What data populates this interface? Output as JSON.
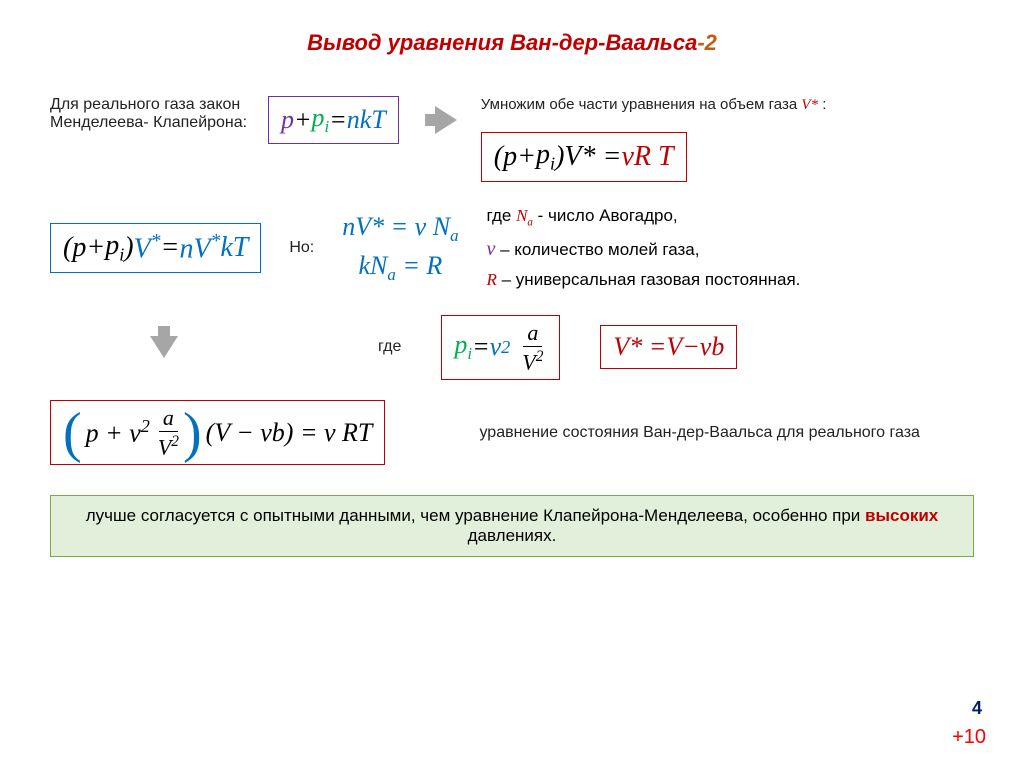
{
  "title": {
    "main": "Вывод уравнения Ван-дер-Ваальса",
    "suffix": "-2",
    "color_main": "#c00000",
    "color_suffix": "#c55a11",
    "fontsize": 22
  },
  "row1": {
    "label_left": "Для реального газа закон Менделеева- Клапейрона:",
    "eq1": {
      "border_color": "#7030a0",
      "terms": [
        {
          "t": "p",
          "c": "#7030a0"
        },
        {
          "t": " + ",
          "c": "#000000"
        },
        {
          "t": "p",
          "c": "#00b050",
          "sub": "i"
        },
        {
          "t": " = ",
          "c": "#000000"
        },
        {
          "t": "nkT",
          "c": "#0070c0"
        }
      ]
    },
    "label_right_prefix": "Умножим обе части уравнения на объем газа ",
    "label_right_sym": "V*",
    "label_right_suffix": " :",
    "eq2": {
      "border_color": "#c00000",
      "terms": [
        {
          "t": "(",
          "c": "#000"
        },
        {
          "t": "p",
          "c": "#000"
        },
        {
          "t": " + ",
          "c": "#000"
        },
        {
          "t": "p",
          "c": "#000",
          "sub": "i"
        },
        {
          "t": ")",
          "c": "#000"
        },
        {
          "t": "V",
          "c": "#000"
        },
        {
          "t": "* = ",
          "c": "#000"
        },
        {
          "t": "ν",
          "c": "#c00000"
        },
        {
          "t": " R T",
          "c": "#c00000"
        }
      ]
    }
  },
  "row2": {
    "eq3": {
      "border_color": "#0070c0",
      "terms": [
        {
          "t": "(",
          "c": "#000"
        },
        {
          "t": "p",
          "c": "#000"
        },
        {
          "t": " + ",
          "c": "#000"
        },
        {
          "t": "p",
          "c": "#000",
          "sub": "i"
        },
        {
          "t": ")",
          "c": "#000"
        },
        {
          "t": "V",
          "c": "#0070c0",
          "sup": "*"
        },
        {
          "t": " = ",
          "c": "#000"
        },
        {
          "t": "nV",
          "c": "#0070c0",
          "sup": "*"
        },
        {
          "t": "kT",
          "c": "#0070c0"
        }
      ]
    },
    "label_but": "Но:",
    "eq4_line1": "nV* = ν N",
    "eq4_line1_sub": "a",
    "eq4_line2_a": "kN",
    "eq4_line2_sub": "a",
    "eq4_line2_b": " = R",
    "defs": {
      "l1_prefix": "где ",
      "l1_sym": "N",
      "l1_sub": "a",
      "l1_rest": " - число Авогадро,",
      "l1_sym_color": "#c00000",
      "l2_sym": "ν",
      "l2_rest": " – количество молей газа,",
      "l2_sym_color": "#7030a0",
      "l3_sym": "R",
      "l3_rest": " – универсальная газовая постоянная.",
      "l3_sym_color": "#c00000"
    }
  },
  "row3": {
    "label_where": "где",
    "eq5": {
      "border_color": "#c00000",
      "p_color": "#00b050",
      "nu_color": "#0070c0",
      "frac_num": "a",
      "frac_den": "V",
      "frac_den_sup": "2"
    },
    "eq6": {
      "border_color": "#c00000",
      "text_parts": [
        {
          "t": "V",
          "c": "#c00000"
        },
        {
          "t": "* = ",
          "c": "#c00000"
        },
        {
          "t": "V",
          "c": "#c00000"
        },
        {
          "t": " − ",
          "c": "#c00000"
        },
        {
          "t": "ν",
          "c": "#c00000"
        },
        {
          "t": "b",
          "c": "#c00000"
        }
      ]
    }
  },
  "row4": {
    "eq7": {
      "border_color": "#c00000",
      "paren_color": "#0070c0",
      "frac_num": "a",
      "frac_den": "V",
      "frac_den_sup": "2",
      "right": "(V − νb) = ν RT"
    },
    "label_right": "уравнение состояния Ван-дер-Ваальса для реального газа"
  },
  "conclusion": {
    "pre": "лучше согласуется с опытными данными, чем уравнение Клапейрона-Менделеева, особенно при ",
    "highlight": "высоких",
    "post": " давлениях.",
    "border_color": "#70ad47",
    "bg_color": "#e2efda"
  },
  "page_number": "4",
  "footer_plus": "+10",
  "colors": {
    "arrow": "#a6a6a6",
    "purple": "#7030a0",
    "blue": "#0070c0",
    "green": "#00b050",
    "red": "#c00000",
    "orange": "#c55a11"
  }
}
